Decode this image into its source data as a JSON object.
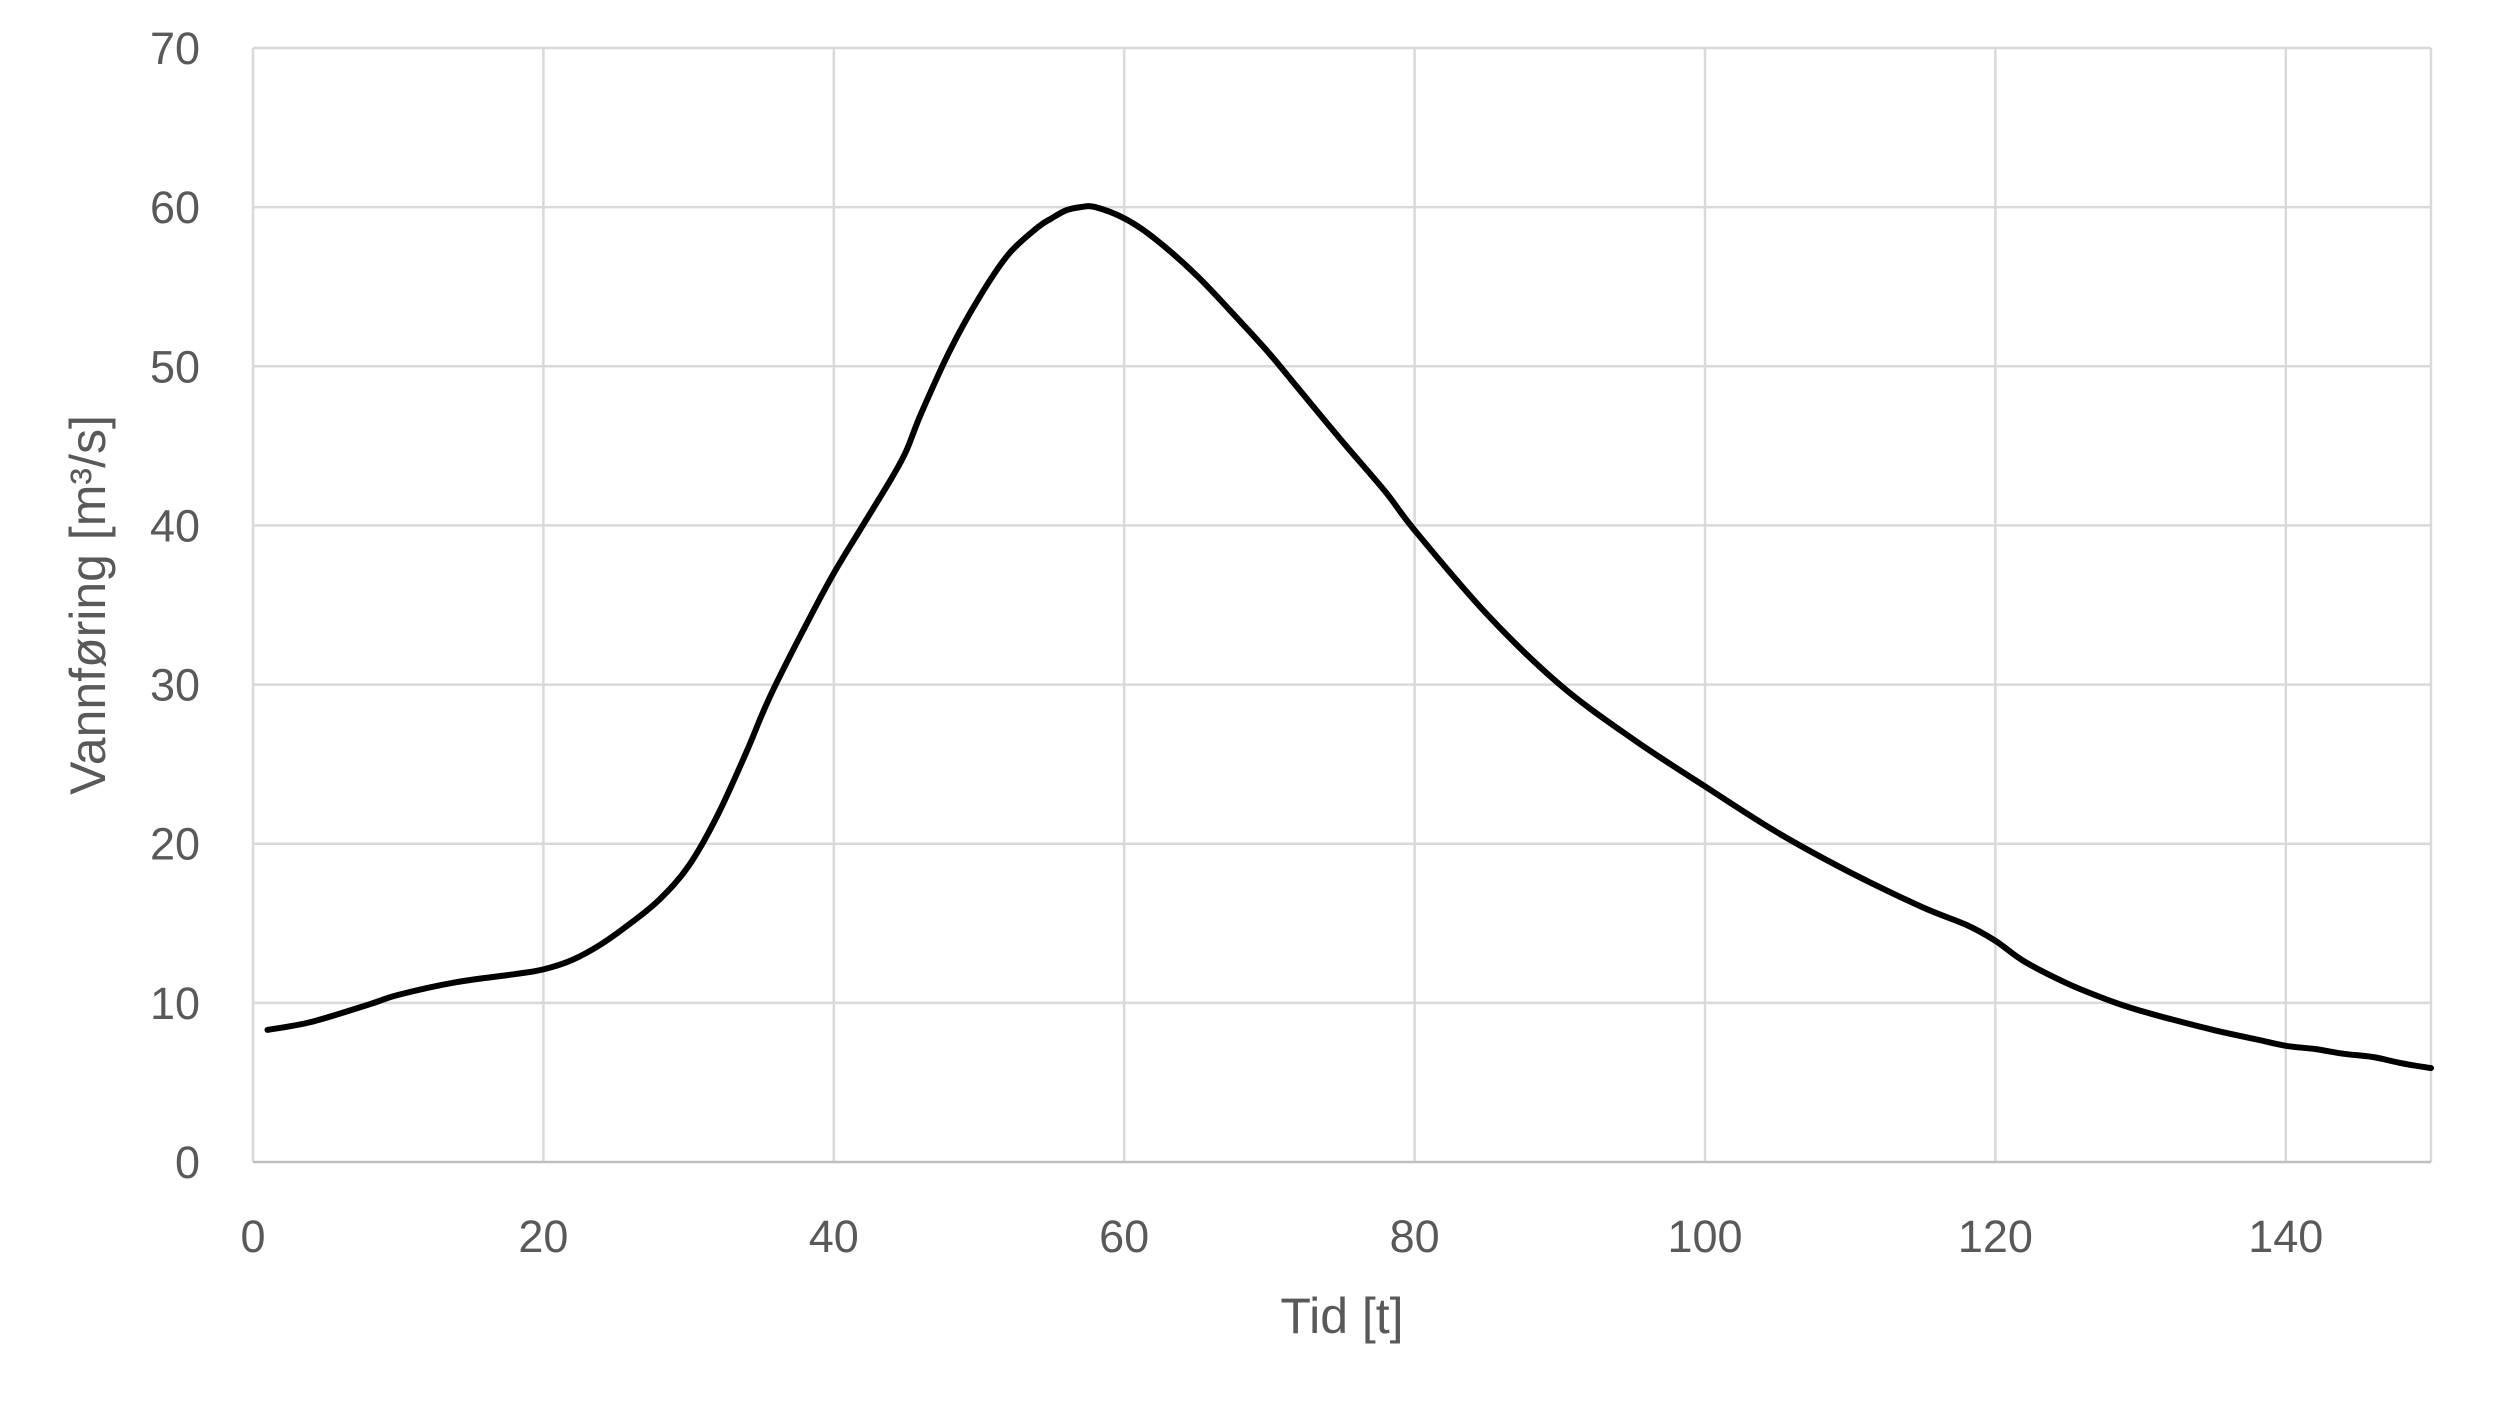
{
  "chart_data": {
    "type": "line",
    "title": "",
    "xlabel": "Tid [t]",
    "ylabel": "Vannføring [m³/s]",
    "xlim": [
      0,
      150
    ],
    "ylim": [
      0,
      70
    ],
    "xticks": [
      0,
      20,
      40,
      60,
      80,
      100,
      120,
      140
    ],
    "yticks": [
      0,
      10,
      20,
      30,
      40,
      50,
      60,
      70
    ],
    "grid": true,
    "legend": "none",
    "line_color": "#000000",
    "series": [
      {
        "x": [
          1,
          4,
          8,
          10,
          14,
          18,
          20,
          22,
          24,
          26,
          28,
          30,
          32,
          34,
          35,
          36,
          38,
          40,
          42,
          44,
          45,
          46,
          48,
          50,
          52,
          54,
          55,
          56,
          57,
          58,
          60,
          62,
          65,
          68,
          70,
          72,
          75,
          78,
          80,
          85,
          90,
          95,
          100,
          105,
          110,
          115,
          118,
          120,
          122,
          125,
          128,
          130,
          132,
          135,
          138,
          140,
          142,
          144,
          146,
          148,
          150
        ],
        "y": [
          8.3,
          8.8,
          9.9,
          10.5,
          11.3,
          11.8,
          12.1,
          12.7,
          13.7,
          15.0,
          16.5,
          18.6,
          21.8,
          25.8,
          28.0,
          30.0,
          33.6,
          37.0,
          40.0,
          43.0,
          44.7,
          47.0,
          51.0,
          54.3,
          57.0,
          58.7,
          59.3,
          59.8,
          60.0,
          60.0,
          59.3,
          58.1,
          55.7,
          52.8,
          50.8,
          48.6,
          45.3,
          42.1,
          39.7,
          34.4,
          30.0,
          26.6,
          23.6,
          20.7,
          18.2,
          16.0,
          14.9,
          13.9,
          12.6,
          11.2,
          10.1,
          9.5,
          9.0,
          8.3,
          7.7,
          7.3,
          7.1,
          6.8,
          6.6,
          6.2,
          5.9
        ]
      }
    ]
  }
}
